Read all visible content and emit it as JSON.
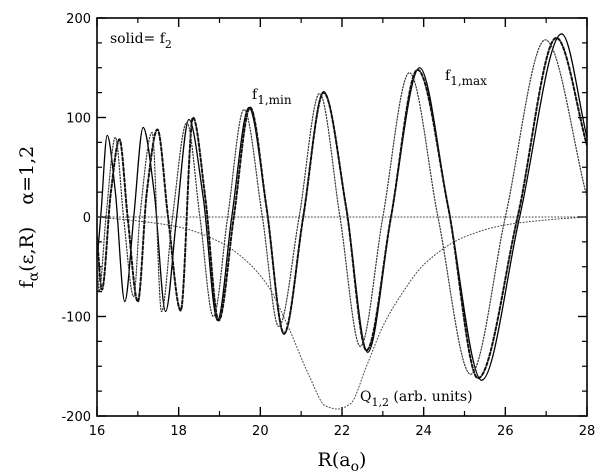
{
  "chart_data": {
    "type": "line",
    "xlabel": "R(a",
    "xlabel_sub": "o",
    "xlabel_close": ")",
    "ylabel_main": "f",
    "ylabel_sub": "α",
    "ylabel_args": "(ε,R)",
    "ylabel_alpha": "α=1,2",
    "xlim": [
      16,
      28
    ],
    "ylim": [
      -200,
      200
    ],
    "x_ticks": [
      16,
      18,
      20,
      22,
      24,
      26,
      28
    ],
    "y_ticks": [
      -200,
      -100,
      0,
      100,
      200
    ],
    "grid": false,
    "annotations": {
      "solid": {
        "text": "solid= f",
        "sub": "2"
      },
      "f1min": {
        "text": "f",
        "sub": "1,min"
      },
      "f1max": {
        "text": "f",
        "sub": "1,max"
      },
      "q": {
        "text": "Q",
        "sub": "1,2",
        "after": " (arb. units)"
      }
    },
    "series": [
      {
        "style": "solid",
        "x": [
          16.0,
          16.1,
          16.25,
          16.45,
          16.68,
          16.9,
          17.13,
          17.4,
          17.68,
          17.95,
          18.25,
          18.6,
          18.95,
          19.3,
          19.72,
          20.15,
          20.58,
          21.05,
          21.55,
          22.1,
          22.63,
          23.2,
          23.9,
          24.6,
          25.42,
          26.35,
          27.38,
          28.0
        ],
        "y": [
          -45,
          5,
          82,
          25,
          -85,
          0,
          90,
          25,
          -95,
          0,
          98,
          20,
          -104,
          0,
          110,
          10,
          -118,
          0,
          126,
          10,
          -136,
          0,
          150,
          10,
          -164,
          0,
          184,
          80
        ]
      },
      {
        "style": "dashed",
        "x": [
          16.0,
          16.12,
          16.34,
          16.55,
          16.75,
          17.0,
          17.22,
          17.48,
          17.74,
          18.05,
          18.35,
          18.65,
          18.98,
          19.35,
          19.75,
          20.15,
          20.58,
          21.05,
          21.55,
          22.1,
          22.6,
          23.2,
          23.85,
          24.6,
          25.33,
          26.3,
          27.25,
          28.0
        ],
        "y": [
          -20,
          -73,
          25,
          78,
          0,
          -85,
          25,
          88,
          0,
          -94,
          100,
          20,
          -104,
          0,
          110,
          10,
          -117,
          0,
          125,
          10,
          -134,
          0,
          148,
          10,
          -162,
          0,
          180,
          72
        ]
      },
      {
        "style": "dotted",
        "x": [
          16.0,
          16.05,
          16.22,
          16.45,
          16.65,
          16.9,
          17.05,
          17.35,
          17.58,
          17.85,
          18.2,
          18.52,
          18.85,
          19.2,
          19.6,
          20.05,
          20.45,
          20.95,
          21.45,
          21.95,
          22.45,
          23.0,
          23.65,
          24.35,
          25.15,
          26.0,
          26.98,
          28.0
        ],
        "y": [
          -40,
          -75,
          0,
          80,
          0,
          -80,
          0,
          85,
          -95,
          0,
          95,
          0,
          -100,
          0,
          108,
          0,
          -110,
          0,
          124,
          0,
          -130,
          0,
          145,
          0,
          -158,
          0,
          178,
          20
        ]
      },
      {
        "style": "dotted-fine",
        "x": [
          16.0,
          17.0,
          18.0,
          19.0,
          19.6,
          20.2,
          20.7,
          21.2,
          21.6,
          21.9,
          22.2,
          22.6,
          23.0,
          23.5,
          24.0,
          25.0,
          26.0,
          27.0,
          28.0
        ],
        "y": [
          0,
          -4,
          -10,
          -25,
          -42,
          -70,
          -112,
          -160,
          -190,
          -193,
          -188,
          -150,
          -110,
          -75,
          -48,
          -20,
          -8,
          -3,
          0
        ]
      },
      {
        "style": "dotted-fine",
        "x": [
          16.0,
          18.0,
          20.0,
          22.0,
          24.0,
          26.0,
          28.0
        ],
        "y": [
          0,
          0,
          0,
          0,
          0,
          0,
          0
        ]
      }
    ]
  }
}
